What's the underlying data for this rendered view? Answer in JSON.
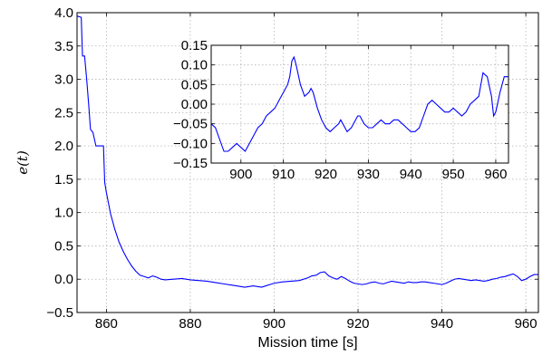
{
  "chart_data": [
    {
      "id": "main",
      "type": "line",
      "title": "",
      "xlabel": "Mission time [s]",
      "ylabel": "e(t)",
      "xlim": [
        853,
        963
      ],
      "ylim": [
        -0.5,
        4.0
      ],
      "xticks": [
        860,
        880,
        900,
        920,
        940,
        960
      ],
      "yticks": [
        -0.5,
        0.0,
        0.5,
        1.0,
        1.5,
        2.0,
        2.5,
        3.0,
        3.5,
        4.0
      ],
      "xtick_labels": [
        "860",
        "880",
        "900",
        "920",
        "940",
        "960"
      ],
      "ytick_labels": [
        "−0.5",
        "0.0",
        "0.5",
        "1.0",
        "1.5",
        "2.0",
        "2.5",
        "3.0",
        "3.5",
        "4.0"
      ],
      "grid": true,
      "legend": false,
      "series": [
        {
          "color": "#0000ff",
          "x": [
            853.0,
            854.0,
            854.3,
            854.8,
            855.3,
            855.8,
            856.2,
            856.8,
            857.5,
            858.0,
            859.3,
            859.6,
            860.0,
            861.0,
            862.0,
            863.0,
            864.0,
            865.0,
            866.0,
            867.0,
            868.0,
            869.0,
            870.0,
            871.0,
            872.0,
            873.0,
            874.0,
            876.0,
            878.0,
            880.0,
            882.0,
            884.0,
            886.0,
            888.0,
            890.0,
            891.0,
            892.0,
            893.0,
            894.0,
            895.0,
            896.0,
            897.0,
            898.0,
            899.0,
            900.0,
            902.0,
            904.0,
            906.0,
            908.0,
            909.0,
            910.0,
            911.0,
            912.0,
            913.0,
            914.0,
            915.0,
            916.0,
            917.0,
            918.0,
            919.0,
            920.0,
            921.0,
            922.0,
            923.0,
            924.0,
            925.0,
            926.0,
            927.0,
            928.0,
            929.0,
            930.0,
            931.0,
            932.0,
            933.0,
            934.0,
            935.0,
            936.0,
            937.0,
            938.0,
            939.0,
            940.0,
            941.0,
            942.0,
            943.0,
            944.0,
            945.0,
            946.0,
            947.0,
            948.0,
            949.0,
            950.0,
            951.0,
            952.0,
            953.0,
            954.0,
            955.0,
            956.0,
            957.0,
            958.0,
            959.0,
            960.0,
            961.0,
            962.0,
            963.0
          ],
          "y": [
            3.95,
            3.93,
            3.35,
            3.35,
            3.0,
            2.6,
            2.25,
            2.2,
            2.0,
            2.0,
            2.0,
            1.45,
            1.3,
            0.98,
            0.75,
            0.56,
            0.42,
            0.3,
            0.2,
            0.12,
            0.06,
            0.04,
            0.02,
            0.05,
            0.03,
            0.0,
            -0.01,
            0.0,
            0.01,
            -0.01,
            -0.02,
            -0.03,
            -0.05,
            -0.07,
            -0.09,
            -0.1,
            -0.11,
            -0.12,
            -0.11,
            -0.1,
            -0.11,
            -0.12,
            -0.1,
            -0.08,
            -0.06,
            -0.04,
            -0.03,
            -0.02,
            0.02,
            0.05,
            0.06,
            0.1,
            0.11,
            0.05,
            0.02,
            0.0,
            0.04,
            0.01,
            -0.03,
            -0.06,
            -0.07,
            -0.08,
            -0.07,
            -0.05,
            -0.04,
            -0.06,
            -0.07,
            -0.05,
            -0.03,
            -0.04,
            -0.05,
            -0.06,
            -0.04,
            -0.05,
            -0.05,
            -0.04,
            -0.04,
            -0.05,
            -0.06,
            -0.07,
            -0.08,
            -0.06,
            -0.03,
            0.0,
            0.01,
            0.0,
            -0.01,
            -0.02,
            -0.01,
            -0.02,
            -0.03,
            -0.02,
            0.0,
            0.01,
            0.03,
            0.04,
            0.06,
            0.08,
            0.04,
            -0.02,
            0.0,
            0.04,
            0.07,
            0.07
          ]
        }
      ]
    },
    {
      "id": "inset",
      "type": "line",
      "title": "",
      "xlabel": "",
      "ylabel": "",
      "xlim": [
        893,
        963
      ],
      "ylim": [
        -0.15,
        0.15
      ],
      "xticks": [
        900,
        910,
        920,
        930,
        940,
        950,
        960
      ],
      "yticks": [
        -0.15,
        -0.1,
        -0.05,
        0.0,
        0.05,
        0.1,
        0.15
      ],
      "xtick_labels": [
        "900",
        "910",
        "920",
        "930",
        "940",
        "950",
        "960"
      ],
      "ytick_labels": [
        "−0.15",
        "−0.10",
        "−0.05",
        "0.00",
        "0.05",
        "0.10",
        "0.15"
      ],
      "grid": true,
      "legend": false,
      "series": [
        {
          "color": "#0000ff",
          "x": [
            893.0,
            894.0,
            895.0,
            896.0,
            897.0,
            898.0,
            899.0,
            900.0,
            901.0,
            902.0,
            903.0,
            904.0,
            905.0,
            906.0,
            907.0,
            908.0,
            909.0,
            910.0,
            911.0,
            911.5,
            912.0,
            912.5,
            913.0,
            914.0,
            915.0,
            916.0,
            916.5,
            917.0,
            918.0,
            919.0,
            920.0,
            921.0,
            922.0,
            923.0,
            923.5,
            924.0,
            925.0,
            926.0,
            927.0,
            927.5,
            928.0,
            929.0,
            930.0,
            931.0,
            932.0,
            933.0,
            934.0,
            935.0,
            936.0,
            937.0,
            938.0,
            939.0,
            940.0,
            941.0,
            942.0,
            943.0,
            944.0,
            945.0,
            946.0,
            947.0,
            948.0,
            949.0,
            950.0,
            951.0,
            952.0,
            953.0,
            954.0,
            955.0,
            956.0,
            956.5,
            957.0,
            958.0,
            959.0,
            959.5,
            960.0,
            961.0,
            962.0,
            963.0
          ],
          "y": [
            -0.05,
            -0.06,
            -0.09,
            -0.12,
            -0.12,
            -0.11,
            -0.1,
            -0.11,
            -0.12,
            -0.1,
            -0.08,
            -0.06,
            -0.05,
            -0.03,
            -0.02,
            -0.01,
            0.01,
            0.03,
            0.05,
            0.07,
            0.11,
            0.12,
            0.1,
            0.05,
            0.02,
            0.03,
            0.04,
            0.03,
            -0.01,
            -0.04,
            -0.06,
            -0.07,
            -0.06,
            -0.05,
            -0.04,
            -0.05,
            -0.07,
            -0.06,
            -0.04,
            -0.03,
            -0.03,
            -0.05,
            -0.06,
            -0.06,
            -0.05,
            -0.04,
            -0.05,
            -0.05,
            -0.04,
            -0.04,
            -0.05,
            -0.06,
            -0.07,
            -0.07,
            -0.06,
            -0.03,
            0.0,
            0.01,
            0.0,
            -0.01,
            -0.02,
            -0.02,
            -0.01,
            -0.02,
            -0.03,
            -0.02,
            0.0,
            0.01,
            0.02,
            0.05,
            0.08,
            0.07,
            0.02,
            -0.03,
            -0.02,
            0.03,
            0.07,
            0.07
          ]
        }
      ]
    }
  ]
}
